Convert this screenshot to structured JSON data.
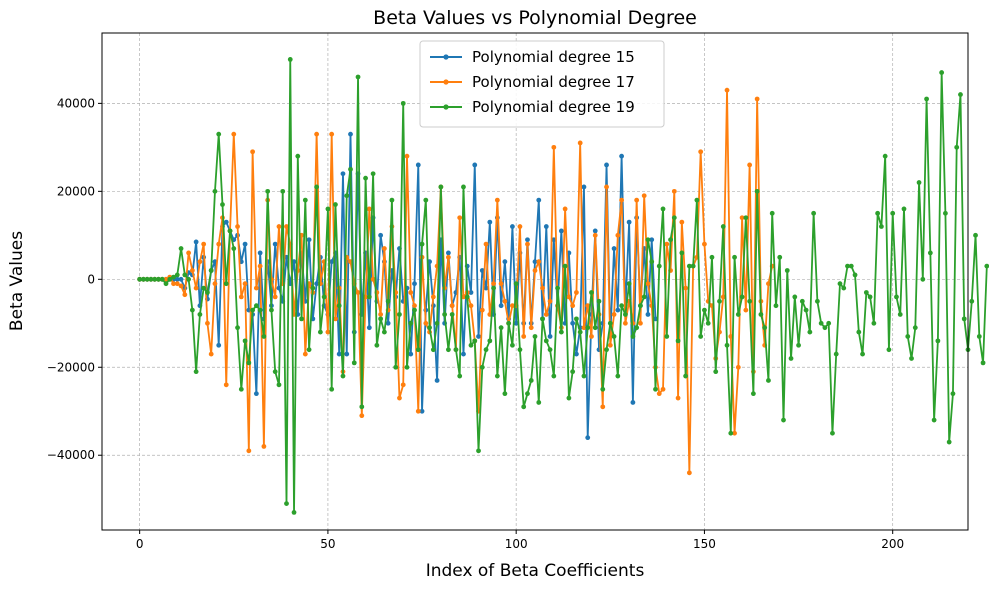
{
  "chart_data": {
    "type": "line",
    "title": "Beta Values vs Polynomial Degree",
    "xlabel": "Index of Beta Coefficients",
    "ylabel": "Beta Values",
    "xlim": [
      -10,
      220
    ],
    "ylim": [
      -57000,
      56000
    ],
    "xticks": [
      0,
      50,
      100,
      150,
      200
    ],
    "xtick_labels": [
      "0",
      "50",
      "100",
      "150",
      "200"
    ],
    "yticks": [
      -40000,
      -20000,
      0,
      20000,
      40000
    ],
    "ytick_labels": [
      "−40000",
      "−20000",
      "0",
      "20000",
      "40000"
    ],
    "grid": true,
    "legend_position": "top-center",
    "series": [
      {
        "name": "Polynomial degree 15",
        "color": "#1f77b4",
        "values": [
          0,
          0,
          0,
          0,
          0,
          0,
          0,
          0,
          0,
          0,
          0,
          0,
          -2000,
          1500,
          1000,
          8500,
          -6000,
          5000,
          -4500,
          2000,
          4000,
          -15000,
          12000,
          13000,
          11000,
          9000,
          10000,
          4000,
          8000,
          -7000,
          -8000,
          -26000,
          6000,
          -9000,
          4000,
          -6000,
          8000,
          -2000,
          -5000,
          5000,
          -1000,
          4000,
          -8000,
          6000,
          -5000,
          9000,
          -9000,
          -1000,
          5000,
          -6000,
          -8000,
          4000,
          6000,
          -17000,
          24000,
          -17000,
          33000,
          -12000,
          24000,
          -8000,
          6000,
          -11000,
          14000,
          -5000,
          10000,
          4000,
          -10000,
          2000,
          -4000,
          7000,
          -5000,
          -2000,
          -17000,
          -1000,
          26000,
          -30000,
          -7000,
          4000,
          -6000,
          -23000,
          9000,
          -10000,
          6000,
          -6000,
          -3000,
          5000,
          -17000,
          3000,
          -3000,
          26000,
          -13000,
          2000,
          -2000,
          13000,
          -8000,
          14000,
          -6000,
          4000,
          -9000,
          12000,
          -10000,
          6000,
          -10000,
          9000,
          -10000,
          4000,
          18000,
          -9000,
          12000,
          -13000,
          9000,
          -6000,
          11000,
          -10000,
          6000,
          -10000,
          -17000,
          -11000,
          21000,
          -36000,
          -8000,
          11000,
          -16000,
          -10000,
          26000,
          -13000,
          7000,
          -7000,
          28000,
          -7000,
          13000,
          -28000,
          14000,
          -6000,
          7000,
          -8000,
          9000,
          -9000
        ]
      },
      {
        "name": "Polynomial degree 17",
        "color": "#ff7f0e",
        "values": [
          0,
          0,
          0,
          0,
          0,
          0,
          0,
          0,
          500,
          -1000,
          -1000,
          -1500,
          -3500,
          6000,
          2000,
          -2000,
          4000,
          8000,
          -10000,
          -17000,
          -1000,
          8000,
          14000,
          -24000,
          11000,
          33000,
          12000,
          -4000,
          -1000,
          -39000,
          29000,
          -2000,
          3000,
          -38000,
          18000,
          0,
          -4000,
          12000,
          -1000,
          12000,
          8000,
          -8000,
          2000,
          10000,
          -17000,
          -1000,
          -3000,
          33000,
          -1000,
          4000,
          -12000,
          33000,
          -9000,
          -2000,
          -21000,
          5000,
          4000,
          -1000,
          -3000,
          -31000,
          -4000,
          16000,
          0,
          -3000,
          -8000,
          7000,
          -7000,
          12000,
          -3000,
          -27000,
          -24000,
          28000,
          -3000,
          -6000,
          -30000,
          5000,
          -10000,
          -12000,
          -4000,
          3000,
          21000,
          -2000,
          5000,
          -6000,
          -16000,
          14000,
          -4000,
          -3000,
          -6000,
          -14000,
          -30000,
          -7000,
          8000,
          -8000,
          -1000,
          18000,
          -1000,
          -5000,
          -10000,
          -6000,
          -6000,
          12000,
          -13000,
          8000,
          -11000,
          2000,
          4000,
          -2000,
          -8000,
          -5000,
          30000,
          -6000,
          -11000,
          16000,
          -4000,
          -6000,
          -3000,
          31000,
          -11000,
          -6000,
          -13000,
          10000,
          -8000,
          -29000,
          21000,
          -15000,
          -8000,
          10000,
          18000,
          -10000,
          -5000,
          -10000,
          18000,
          -10000,
          19000,
          -1000,
          -6000,
          -20000,
          -26000,
          -25000,
          8000,
          2000,
          20000,
          -27000,
          13000,
          -2000,
          -44000,
          3000,
          5000,
          29000,
          8000,
          -5000,
          -6000,
          -18000,
          -12000,
          -4000,
          43000,
          -13000,
          -35000,
          -20000,
          14000,
          -7000,
          26000,
          -21000,
          41000,
          -5000,
          -15000,
          -1000,
          3000
        ]
      },
      {
        "name": "Polynomial degree 19",
        "color": "#2ca02c",
        "values": [
          0,
          0,
          0,
          0,
          0,
          0,
          0,
          -1000,
          0,
          500,
          1000,
          7000,
          1000,
          0,
          -7000,
          -21000,
          -8000,
          -2000,
          -3000,
          2000,
          20000,
          33000,
          17000,
          -1000,
          11000,
          7000,
          -11000,
          -25000,
          -14000,
          -19000,
          -7000,
          -6000,
          -7000,
          -13000,
          20000,
          -7000,
          -21000,
          -24000,
          20000,
          -51000,
          50000,
          -53000,
          28000,
          -9000,
          18000,
          -16000,
          -2000,
          21000,
          -12000,
          -4000,
          16000,
          -25000,
          17000,
          -6000,
          -22000,
          19000,
          25000,
          -19000,
          46000,
          -29000,
          23000,
          -4000,
          24000,
          -15000,
          -9000,
          -12000,
          -5000,
          18000,
          -20000,
          -8000,
          40000,
          -20000,
          -10000,
          -7000,
          -16000,
          8000,
          18000,
          -11000,
          -16000,
          -10000,
          21000,
          -8000,
          -16000,
          -8000,
          -16000,
          -22000,
          21000,
          -4000,
          -15000,
          -14000,
          -39000,
          -20000,
          -16000,
          -14000,
          -2000,
          -22000,
          -11000,
          -26000,
          -10000,
          -15000,
          -1000,
          -16000,
          -29000,
          -26000,
          -23000,
          -13000,
          -28000,
          -9000,
          -14000,
          -16000,
          -22000,
          -2000,
          -12000,
          3000,
          -27000,
          -21000,
          -9000,
          -12000,
          -22000,
          -11000,
          -3000,
          -11000,
          -5000,
          -25000,
          -16000,
          -10000,
          -13000,
          -22000,
          -6000,
          -8000,
          -1000,
          -13000,
          -11000,
          -6000,
          -4000,
          9000,
          4000,
          -25000,
          3000,
          16000,
          -13000,
          9000,
          14000,
          -14000,
          6000,
          -22000,
          3000,
          3000,
          18000,
          -13000,
          -7000,
          -10000,
          5000,
          -21000,
          -5000,
          12000,
          -15000,
          -35000,
          5000,
          -8000,
          -4000,
          14000,
          -5000,
          -26000,
          20000,
          -8000,
          -11000,
          -23000,
          15000,
          -6000,
          5000,
          -32000,
          2000,
          -18000,
          -4000,
          -15000,
          -5000,
          -7000,
          -12000,
          15000,
          -5000,
          -10000,
          -11000,
          -10000,
          -35000,
          -17000,
          -1000,
          -2000,
          3000,
          3000,
          1000,
          -12000,
          -17000,
          -3000,
          -4000,
          -10000,
          15000,
          12000,
          28000,
          -16000,
          15000,
          -4000,
          -8000,
          16000,
          -13000,
          -18000,
          -11000,
          22000,
          0,
          41000,
          6000,
          -32000,
          -14000,
          47000,
          15000,
          -37000,
          -26000,
          30000,
          42000,
          -9000,
          -16000,
          -5000,
          10000,
          -13000,
          -19000,
          3000
        ]
      }
    ]
  }
}
